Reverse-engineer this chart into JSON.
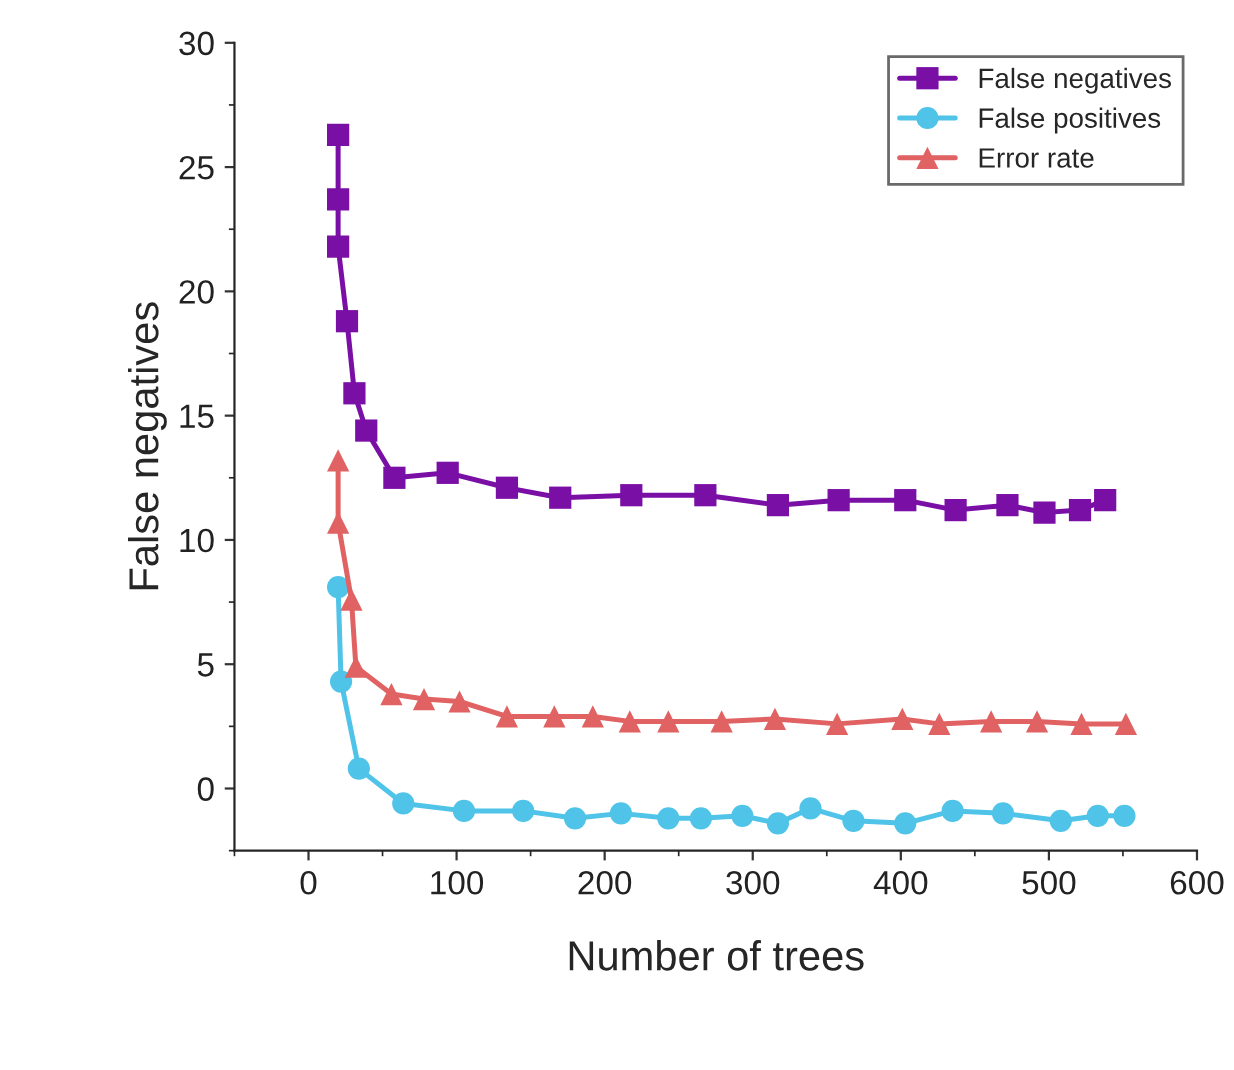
{
  "chart_data": {
    "type": "line",
    "xlabel": "Number of trees",
    "ylabel": "False negatives",
    "xlim": [
      -50,
      600
    ],
    "xticks": [
      0,
      100,
      200,
      300,
      400,
      500,
      600
    ],
    "ylim": [
      -2.5,
      30
    ],
    "yticks": [
      0,
      5,
      10,
      15,
      20,
      25,
      30
    ],
    "grid": false,
    "legend": "top right",
    "line_style": "solid",
    "series": [
      {
        "name": "False negatives",
        "color": "#7a0fa6",
        "marker": "square",
        "x": [
          20,
          20,
          20,
          26,
          31,
          39,
          58,
          94,
          134,
          170,
          218,
          268,
          317,
          358,
          403,
          437,
          472,
          497,
          521,
          538
        ],
        "values": [
          26.3,
          23.7,
          21.8,
          18.8,
          15.9,
          14.4,
          12.5,
          12.7,
          12.1,
          11.7,
          11.8,
          11.8,
          11.4,
          11.6,
          11.6,
          11.2,
          11.4,
          11.1,
          11.2,
          11.6
        ]
      },
      {
        "name": "False positives",
        "color": "#4fc3e8",
        "marker": "circle",
        "x": [
          20,
          22,
          34,
          64,
          105,
          145,
          180,
          211,
          243,
          265,
          293,
          317,
          339,
          368,
          403,
          435,
          469,
          508,
          533,
          551
        ],
        "values": [
          8.1,
          4.3,
          0.8,
          -0.6,
          -0.9,
          -0.9,
          -1.2,
          -1.0,
          -1.2,
          -1.2,
          -1.1,
          -1.4,
          -0.8,
          -1.3,
          -1.4,
          -0.9,
          -1.0,
          -1.3,
          -1.1,
          -1.1
        ]
      },
      {
        "name": "Error rate",
        "color": "#e06262",
        "marker": "triangle",
        "x": [
          20,
          20,
          29,
          32,
          56,
          78,
          102,
          134,
          166,
          192,
          217,
          243,
          279,
          315,
          357,
          401,
          426,
          461,
          492,
          522,
          552
        ],
        "values": [
          13.2,
          10.7,
          7.6,
          4.9,
          3.8,
          3.6,
          3.5,
          2.9,
          2.9,
          2.9,
          2.7,
          2.7,
          2.7,
          2.8,
          2.6,
          2.8,
          2.6,
          2.7,
          2.7,
          2.6,
          2.6
        ]
      }
    ]
  }
}
